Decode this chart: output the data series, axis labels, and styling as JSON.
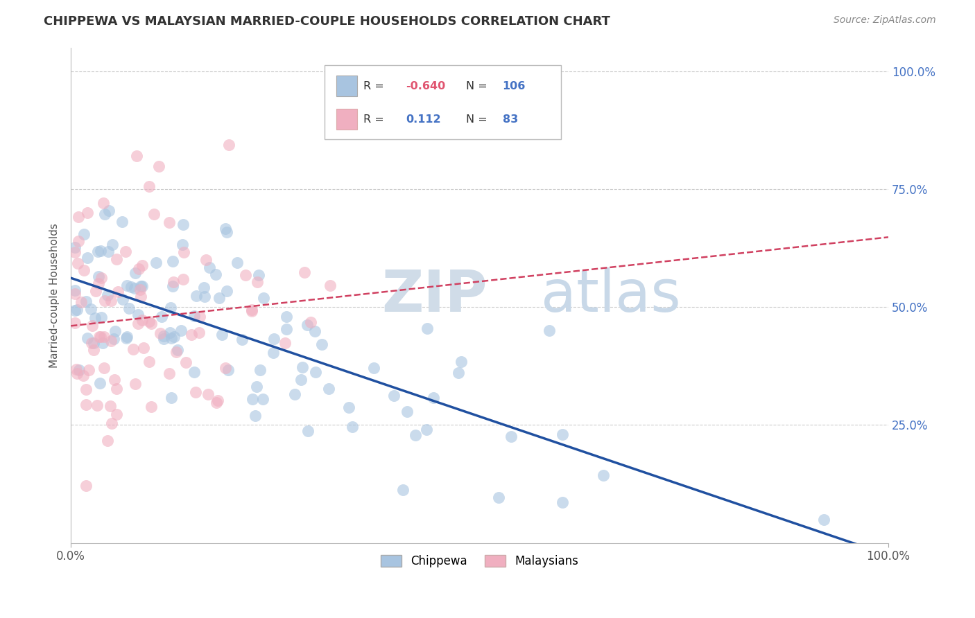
{
  "title": "CHIPPEWA VS MALAYSIAN MARRIED-COUPLE HOUSEHOLDS CORRELATION CHART",
  "source": "Source: ZipAtlas.com",
  "ylabel": "Married-couple Households",
  "legend_labels": [
    "Chippewa",
    "Malaysians"
  ],
  "legend_r": [
    -0.64,
    0.112
  ],
  "legend_n": [
    106,
    83
  ],
  "chippewa_color": "#a8c4e0",
  "malaysian_color": "#f0afc0",
  "chippewa_line_color": "#2050a0",
  "malaysian_line_color": "#d04060",
  "watermark_color": "#d0dce8",
  "background_color": "#ffffff",
  "grid_color": "#cccccc",
  "title_color": "#333333",
  "right_tick_color": "#4472c4",
  "r_value_color": "#4472c4",
  "n_value_color": "#4472c4",
  "r_neg_color": "#e05570",
  "seed": 12345
}
